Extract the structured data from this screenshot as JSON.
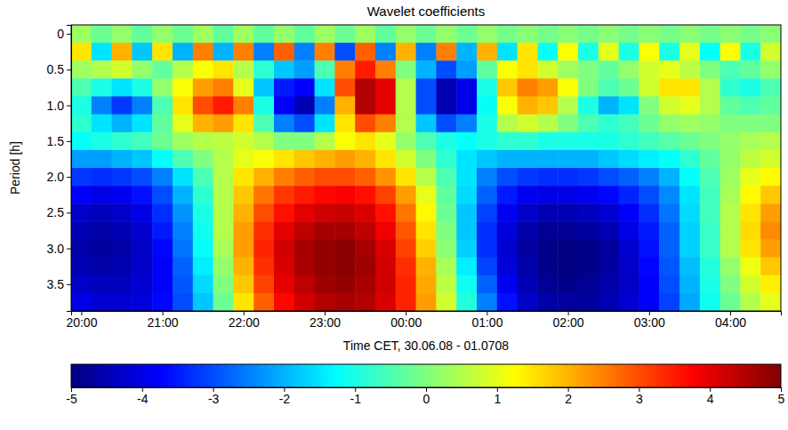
{
  "chart_data": {
    "type": "heatmap",
    "title": "Wavelet coefficients",
    "x_label": "Time CET, 30.06.08 - 01.0708",
    "y_label": "Period [h]",
    "color": "jet",
    "x": [
      20,
      20.25,
      20.5,
      20.75,
      21,
      21.25,
      21.5,
      21.75,
      22,
      22.25,
      22.5,
      22.75,
      23,
      23.25,
      23.5,
      23.75,
      24,
      24.25,
      24.5,
      24.75,
      25,
      25.25,
      25.5,
      25.75,
      26,
      26.25,
      26.5,
      26.75,
      27,
      27.25,
      27.5,
      27.75,
      28,
      28.25,
      28.5
    ],
    "y": [
      0,
      0.25,
      0.5,
      0.75,
      1,
      1.25,
      1.5,
      1.75,
      2,
      2.25,
      2.5,
      2.75,
      3,
      3.25,
      3.5,
      3.75
    ],
    "xlim": [
      19.875,
      28.625
    ],
    "ylim": [
      -0.125,
      3.875
    ],
    "xticks": [
      {
        "value": 20,
        "label": "20:00"
      },
      {
        "value": 21,
        "label": "21:00"
      },
      {
        "value": 22,
        "label": "22:00"
      },
      {
        "value": 23,
        "label": "23:00"
      },
      {
        "value": 24,
        "label": "00:00"
      },
      {
        "value": 25,
        "label": "01:00"
      },
      {
        "value": 26,
        "label": "02:00"
      },
      {
        "value": 27,
        "label": "03:00"
      },
      {
        "value": 28,
        "label": "04:00"
      }
    ],
    "yticks": [
      0,
      0.5,
      {
        "value": 1,
        "label": "1.0"
      },
      1.5,
      {
        "value": 2,
        "label": "2.0"
      },
      2.5,
      {
        "value": 3,
        "label": "3.0"
      },
      3.5
    ],
    "colorbar": {
      "range": [
        -5,
        5
      ],
      "ticks": [
        -5,
        -4,
        -3,
        -2,
        -1,
        0,
        1,
        2,
        3,
        4,
        5
      ]
    },
    "cells": [
      [
        0.3,
        -0.2,
        0.2,
        -0.3,
        0.2,
        -0.2,
        0.3,
        -0.3,
        0.3,
        -0.3,
        0.2,
        -0.3,
        0.3,
        -0.2,
        0.3,
        -0.3,
        0.2,
        -0.2,
        0.2,
        -0.2,
        0.2,
        -0.1,
        0.1,
        -0.1,
        0.1,
        -0.1,
        0.1,
        -0.1,
        0.1,
        -0.1,
        0.1,
        -0.1,
        0.1,
        -0.1,
        0.1
      ],
      [
        1.5,
        -1.5,
        2,
        -1.8,
        1.5,
        -2,
        2.5,
        -2,
        2.5,
        -2.5,
        2.8,
        -2.5,
        2.5,
        -3,
        2.8,
        -2.5,
        2,
        -2.5,
        2.5,
        -2,
        2,
        -1.5,
        1.5,
        -1.2,
        1.2,
        -1,
        1,
        -1,
        1.2,
        -1,
        1,
        -1.2,
        1.2,
        -1,
        0.8
      ],
      [
        0.3,
        0.5,
        0.8,
        0.2,
        -0.3,
        0.5,
        1.2,
        1.5,
        0.5,
        -0.8,
        -1.8,
        -2.2,
        -0.5,
        2.5,
        3.5,
        2.5,
        0,
        -2,
        -3,
        -2.2,
        -0.3,
        1.2,
        1.5,
        0.8,
        0.3,
        0,
        -0.3,
        0.2,
        0.8,
        1,
        0.6,
        0,
        -0.5,
        -0.3,
        0.2
      ],
      [
        -0.5,
        -1,
        -1.5,
        -1,
        0.2,
        1.2,
        2.2,
        2.5,
        1,
        -1.8,
        -3.5,
        -3.8,
        -1.5,
        3,
        4.5,
        4,
        0.5,
        -3,
        -4.5,
        -4,
        -1,
        1.8,
        2.5,
        2.2,
        1.2,
        0,
        -0.5,
        -0.2,
        0.8,
        1.5,
        1.5,
        0.5,
        -0.8,
        -1,
        -0.5
      ],
      [
        -1,
        -2.5,
        -3.2,
        -2.5,
        -0.5,
        1.5,
        3,
        3.5,
        2.5,
        -1,
        -3.8,
        -4.5,
        -2.5,
        2,
        4.5,
        4,
        0.5,
        -3,
        -4.5,
        -4,
        -1.2,
        1.2,
        2,
        1.8,
        0.5,
        -1,
        -2,
        -1.5,
        0,
        0.8,
        1,
        0.5,
        -0.3,
        -0.5,
        -0.3
      ],
      [
        -0.8,
        -1.5,
        -2,
        -1.5,
        -0.3,
        1,
        2,
        2.2,
        1.5,
        -0.5,
        -2.5,
        -3,
        -1.5,
        1.5,
        3,
        2.5,
        0.5,
        -1.8,
        -3,
        -2.5,
        -1,
        0.5,
        0.8,
        0.5,
        0,
        -0.5,
        -0.8,
        -0.6,
        -0.2,
        0.2,
        0.3,
        0.2,
        0,
        0,
        0
      ],
      [
        -1.2,
        -1,
        -0.8,
        -0.6,
        -0.2,
        0.3,
        0.5,
        0.6,
        0.8,
        0.5,
        0,
        0,
        0.5,
        1.2,
        1.5,
        1,
        0.2,
        -0.5,
        -1,
        -1.2,
        -1,
        -0.8,
        -0.8,
        -1,
        -1,
        -1,
        -1,
        -0.8,
        -0.6,
        -0.4,
        -0.2,
        0,
        0.2,
        0.4,
        0.5
      ],
      [
        -2.2,
        -2.2,
        -2,
        -1.8,
        -1.2,
        -0.5,
        0,
        0.5,
        1,
        1.2,
        1.5,
        1.8,
        2,
        2.2,
        2,
        1.5,
        0.8,
        0,
        -0.8,
        -1.5,
        -1.8,
        -2,
        -2,
        -2,
        -2,
        -2,
        -1.8,
        -1.6,
        -1.4,
        -1.2,
        -0.8,
        -0.3,
        0.2,
        0.6,
        0.8
      ],
      [
        -3.2,
        -3.3,
        -3.2,
        -3,
        -2.5,
        -1.5,
        -0.5,
        0.5,
        1.5,
        2,
        2.5,
        2.8,
        3,
        3,
        2.8,
        2.3,
        1.5,
        0.5,
        -0.5,
        -1.5,
        -2.5,
        -3,
        -3.2,
        -3.3,
        -3.3,
        -3.2,
        -3,
        -2.8,
        -2.5,
        -2,
        -1.2,
        -0.5,
        0.3,
        1,
        1.3
      ],
      [
        -3.8,
        -4,
        -3.9,
        -3.6,
        -3,
        -2,
        -0.8,
        0.5,
        1.8,
        2.6,
        3.2,
        3.5,
        3.7,
        3.8,
        3.6,
        3.1,
        2.2,
        1,
        -0.3,
        -1.6,
        -2.8,
        -3.5,
        -3.9,
        -4,
        -4,
        -3.9,
        -3.7,
        -3.4,
        -3,
        -2.4,
        -1.5,
        -0.6,
        0.4,
        1.3,
        1.8
      ],
      [
        -4.3,
        -4.4,
        -4.3,
        -4,
        -3.3,
        -2.3,
        -1,
        0.5,
        2,
        3,
        3.6,
        4,
        4.2,
        4.3,
        4.1,
        3.6,
        2.6,
        1.3,
        -0.2,
        -1.8,
        -3.1,
        -3.9,
        -4.3,
        -4.5,
        -4.5,
        -4.4,
        -4.2,
        -3.8,
        -3.3,
        -2.6,
        -1.6,
        -0.6,
        0.5,
        1.5,
        2.2
      ],
      [
        -4.5,
        -4.6,
        -4.5,
        -4.2,
        -3.5,
        -2.5,
        -1.1,
        0.5,
        2.2,
        3.3,
        4,
        4.4,
        4.6,
        4.6,
        4.4,
        3.9,
        2.9,
        1.5,
        0,
        -1.8,
        -3.3,
        -4.1,
        -4.6,
        -4.8,
        -4.8,
        -4.7,
        -4.5,
        -4,
        -3.5,
        -2.8,
        -1.7,
        -0.7,
        0.5,
        1.6,
        2.4
      ],
      [
        -4.6,
        -4.7,
        -4.6,
        -4.3,
        -3.7,
        -2.6,
        -1.2,
        0.4,
        2.2,
        3.4,
        4.2,
        4.6,
        4.8,
        4.9,
        4.6,
        4.1,
        3.1,
        1.7,
        0.1,
        -1.7,
        -3.3,
        -4.2,
        -4.7,
        -4.9,
        -5,
        -4.9,
        -4.7,
        -4.2,
        -3.6,
        -2.8,
        -1.7,
        -0.7,
        0.5,
        1.5,
        2.2
      ],
      [
        -4.5,
        -4.6,
        -4.5,
        -4.3,
        -3.8,
        -2.8,
        -1.4,
        0.2,
        2,
        3.3,
        4.1,
        4.6,
        4.8,
        4.9,
        4.7,
        4.2,
        3.3,
        2,
        0.4,
        -1.4,
        -3.1,
        -4.1,
        -4.6,
        -4.9,
        -5,
        -4.9,
        -4.7,
        -4.3,
        -3.7,
        -2.9,
        -1.9,
        -0.9,
        0.2,
        1.1,
        1.8
      ],
      [
        -4.3,
        -4.4,
        -4.4,
        -4.2,
        -3.8,
        -2.9,
        -1.6,
        0,
        1.8,
        3.1,
        4,
        4.4,
        4.7,
        4.8,
        4.6,
        4.2,
        3.4,
        2.1,
        0.6,
        -1.1,
        -2.8,
        -3.9,
        -4.5,
        -4.8,
        -4.9,
        -4.8,
        -4.6,
        -4.3,
        -3.8,
        -3,
        -2,
        -1,
        0,
        0.8,
        1.4
      ],
      [
        -4,
        -4.2,
        -4.2,
        -4.1,
        -3.7,
        -3,
        -1.8,
        -0.2,
        1.5,
        2.8,
        3.7,
        4.2,
        4.5,
        4.6,
        4.5,
        4.1,
        3.4,
        2.2,
        0.8,
        -0.9,
        -2.5,
        -3.6,
        -4.3,
        -4.6,
        -4.7,
        -4.7,
        -4.5,
        -4.2,
        -3.8,
        -3.1,
        -2.1,
        -1.1,
        -0.2,
        0.5,
        1
      ]
    ]
  }
}
